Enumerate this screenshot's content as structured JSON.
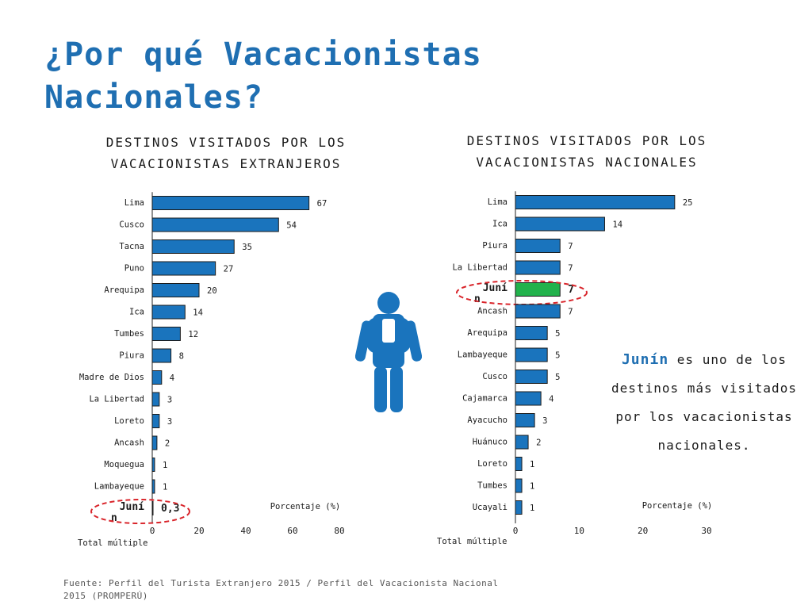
{
  "slide": {
    "title": "¿Por qué Vacacionistas Nacionales?",
    "source": "Fuente: Perfil del Turista Extranjero 2015 / Perfil del Vacacionista Nacional 2015 (PROMPERÚ)"
  },
  "callout": {
    "highlight": "Junín",
    "text": "es uno de los destinos más visitados por los vacacionistas nacionales."
  },
  "icons": {
    "traveler": "backpacker-icon"
  },
  "colors": {
    "bar": "#1a74bd",
    "highlight_bar": "#22b24c",
    "title": "#1f6fb2",
    "circle": "#d9252b"
  },
  "chart_data": [
    {
      "type": "bar",
      "orientation": "horizontal",
      "title": "DESTINOS VISITADOS POR LOS VACACIONISTAS EXTRANJEROS",
      "xlabel": "Porcentaje (%)",
      "ylabel": "Total múltiple",
      "categories": [
        "Lima",
        "Cusco",
        "Tacna",
        "Puno",
        "Arequipa",
        "Ica",
        "Tumbes",
        "Piura",
        "Madre de Dios",
        "La Libertad",
        "Loreto",
        "Ancash",
        "Moquegua",
        "Lambayeque",
        "Junín"
      ],
      "values": [
        67,
        54,
        35,
        27,
        20,
        14,
        12,
        8,
        4,
        3,
        3,
        2,
        1,
        1,
        0.3
      ],
      "data_labels": [
        "67",
        "54",
        "35",
        "27",
        "20",
        "14",
        "12",
        "8",
        "4",
        "3",
        "3",
        "2",
        "1",
        "1",
        "0,3"
      ],
      "category_labels": [
        "Lima",
        "Cusco",
        "Tacna",
        "Puno",
        "Arequipa",
        "Ica",
        "Tumbes",
        "Piura",
        "Madre de Dios",
        "La Libertad",
        "Loreto",
        "Ancash",
        "Moquegua",
        "Lambayeque",
        "Juní\nn"
      ],
      "highlight": "Junín",
      "xlim": [
        0,
        80
      ],
      "xticks": [
        0,
        20,
        40,
        60,
        80
      ],
      "grid": false
    },
    {
      "type": "bar",
      "orientation": "horizontal",
      "title": "DESTINOS VISITADOS POR LOS VACACIONISTAS NACIONALES",
      "xlabel": "Porcentaje (%)",
      "ylabel": "Total múltiple",
      "categories": [
        "Lima",
        "Ica",
        "Piura",
        "La Libertad",
        "Junín",
        "Ancash",
        "Arequipa",
        "Lambayeque",
        "Cusco",
        "Cajamarca",
        "Ayacucho",
        "Huánuco",
        "Loreto",
        "Tumbes",
        "Ucayali"
      ],
      "values": [
        25,
        14,
        7,
        7,
        7,
        7,
        5,
        5,
        5,
        4,
        3,
        2,
        1,
        1,
        1
      ],
      "data_labels": [
        "25",
        "14",
        "7",
        "7",
        "7",
        "7",
        "5",
        "5",
        "5",
        "4",
        "3",
        "2",
        "1",
        "1",
        "1"
      ],
      "category_labels": [
        "Lima",
        "Ica",
        "Piura",
        "La Libertad",
        "Juní\nn",
        "Ancash",
        "Arequipa",
        "Lambayeque",
        "Cusco",
        "Cajamarca",
        "Ayacucho",
        "Huánuco",
        "Loreto",
        "Tumbes",
        "Ucayali"
      ],
      "highlight": "Junín",
      "xlim": [
        0,
        30
      ],
      "xticks": [
        0,
        10,
        20,
        30
      ],
      "grid": false
    }
  ]
}
